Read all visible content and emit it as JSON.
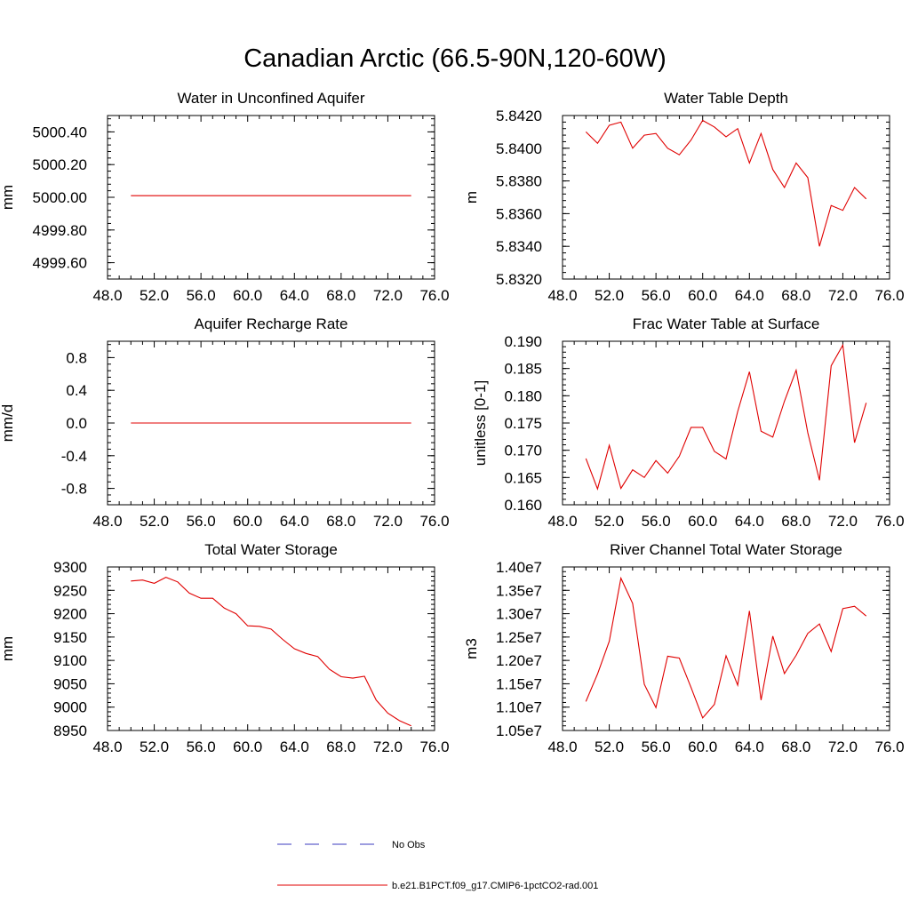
{
  "title": "Canadian Arctic (66.5-90N,120-60W)",
  "legend": {
    "items": [
      {
        "label": "No Obs",
        "color": "#3b3bbf",
        "dash": true
      },
      {
        "label": "b.e21.B1PCT.f09_g17.CMIP6-1pctCO2-rad.001",
        "color": "#e00000",
        "dash": false
      }
    ]
  },
  "chart_data": [
    {
      "type": "line",
      "title": "Water in Unconfined Aquifer",
      "xlabel": "",
      "ylabel": "mm",
      "xlim": [
        48,
        76
      ],
      "ylim": [
        4999.5,
        5000.5
      ],
      "xticks": [
        "48.0",
        "52.0",
        "56.0",
        "60.0",
        "64.0",
        "68.0",
        "72.0",
        "76.0"
      ],
      "yticks": [
        {
          "v": 4999.6,
          "label": "4999.60"
        },
        {
          "v": 4999.8,
          "label": "4999.80"
        },
        {
          "v": 5000.0,
          "label": "5000.00"
        },
        {
          "v": 5000.2,
          "label": "5000.20"
        },
        {
          "v": 5000.4,
          "label": "5000.40"
        }
      ],
      "color": "#e00000",
      "x": [
        50,
        51,
        52,
        53,
        54,
        55,
        56,
        57,
        58,
        59,
        60,
        61,
        62,
        63,
        64,
        65,
        66,
        67,
        68,
        69,
        70,
        71,
        72,
        73,
        74
      ],
      "values": [
        5000.01,
        5000.01,
        5000.01,
        5000.01,
        5000.01,
        5000.01,
        5000.01,
        5000.01,
        5000.01,
        5000.01,
        5000.01,
        5000.01,
        5000.01,
        5000.01,
        5000.01,
        5000.01,
        5000.01,
        5000.01,
        5000.01,
        5000.01,
        5000.01,
        5000.01,
        5000.01,
        5000.01,
        5000.01
      ]
    },
    {
      "type": "line",
      "title": "Water Table Depth",
      "xlabel": "",
      "ylabel": "m",
      "xlim": [
        48,
        76
      ],
      "ylim": [
        5.832,
        5.842
      ],
      "xticks": [
        "48.0",
        "52.0",
        "56.0",
        "60.0",
        "64.0",
        "68.0",
        "72.0",
        "76.0"
      ],
      "yticks": [
        {
          "v": 5.832,
          "label": "5.8320"
        },
        {
          "v": 5.834,
          "label": "5.8340"
        },
        {
          "v": 5.836,
          "label": "5.8360"
        },
        {
          "v": 5.838,
          "label": "5.8380"
        },
        {
          "v": 5.84,
          "label": "5.8400"
        },
        {
          "v": 5.842,
          "label": "5.8420"
        }
      ],
      "color": "#e00000",
      "x": [
        50,
        51,
        52,
        53,
        54,
        55,
        56,
        57,
        58,
        59,
        60,
        61,
        62,
        63,
        64,
        65,
        66,
        67,
        68,
        69,
        70,
        71,
        72,
        73,
        74
      ],
      "values": [
        5.841,
        5.8403,
        5.8414,
        5.8416,
        5.84,
        5.8408,
        5.8409,
        5.84,
        5.8396,
        5.8405,
        5.8417,
        5.8413,
        5.8407,
        5.8412,
        5.8391,
        5.8409,
        5.8387,
        5.8376,
        5.8391,
        5.8382,
        5.834,
        5.8365,
        5.8362,
        5.8376,
        5.8369
      ]
    },
    {
      "type": "line",
      "title": "Aquifer Recharge Rate",
      "xlabel": "",
      "ylabel": "mm/d",
      "xlim": [
        48,
        76
      ],
      "ylim": [
        -1.0,
        1.0
      ],
      "xticks": [
        "48.0",
        "52.0",
        "56.0",
        "60.0",
        "64.0",
        "68.0",
        "72.0",
        "76.0"
      ],
      "yticks": [
        {
          "v": -0.8,
          "label": "-0.8"
        },
        {
          "v": -0.4,
          "label": "-0.4"
        },
        {
          "v": 0.0,
          "label": "0.0"
        },
        {
          "v": 0.4,
          "label": "0.4"
        },
        {
          "v": 0.8,
          "label": "0.8"
        }
      ],
      "color": "#e00000",
      "x": [
        50,
        51,
        52,
        53,
        54,
        55,
        56,
        57,
        58,
        59,
        60,
        61,
        62,
        63,
        64,
        65,
        66,
        67,
        68,
        69,
        70,
        71,
        72,
        73,
        74
      ],
      "values": [
        0,
        0,
        0,
        0,
        0,
        0,
        0,
        0,
        0,
        0,
        0,
        0,
        0,
        0,
        0,
        0,
        0,
        0,
        0,
        0,
        0,
        0,
        0,
        0,
        0
      ]
    },
    {
      "type": "line",
      "title": "Frac Water Table at Surface",
      "xlabel": "",
      "ylabel": "unitless [0-1]",
      "xlim": [
        48,
        76
      ],
      "ylim": [
        0.16,
        0.19
      ],
      "xticks": [
        "48.0",
        "52.0",
        "56.0",
        "60.0",
        "64.0",
        "68.0",
        "72.0",
        "76.0"
      ],
      "yticks": [
        {
          "v": 0.16,
          "label": "0.160"
        },
        {
          "v": 0.165,
          "label": "0.165"
        },
        {
          "v": 0.17,
          "label": "0.170"
        },
        {
          "v": 0.175,
          "label": "0.175"
        },
        {
          "v": 0.18,
          "label": "0.180"
        },
        {
          "v": 0.185,
          "label": "0.185"
        },
        {
          "v": 0.19,
          "label": "0.190"
        }
      ],
      "color": "#e00000",
      "x": [
        50,
        51,
        52,
        53,
        54,
        55,
        56,
        57,
        58,
        59,
        60,
        61,
        62,
        63,
        64,
        65,
        66,
        67,
        68,
        69,
        70,
        71,
        72,
        73,
        74
      ],
      "values": [
        0.1685,
        0.1629,
        0.1709,
        0.163,
        0.1664,
        0.165,
        0.1681,
        0.1658,
        0.1689,
        0.1742,
        0.1742,
        0.1698,
        0.1684,
        0.1771,
        0.1844,
        0.1735,
        0.1724,
        0.179,
        0.1847,
        0.1732,
        0.1645,
        0.1855,
        0.1893,
        0.1714,
        0.1787
      ]
    },
    {
      "type": "line",
      "title": "Total Water Storage",
      "xlabel": "",
      "ylabel": "mm",
      "xlim": [
        48,
        76
      ],
      "ylim": [
        8950,
        9300
      ],
      "xticks": [
        "48.0",
        "52.0",
        "56.0",
        "60.0",
        "64.0",
        "68.0",
        "72.0",
        "76.0"
      ],
      "yticks": [
        {
          "v": 8950,
          "label": "8950"
        },
        {
          "v": 9000,
          "label": "9000"
        },
        {
          "v": 9050,
          "label": "9050"
        },
        {
          "v": 9100,
          "label": "9100"
        },
        {
          "v": 9150,
          "label": "9150"
        },
        {
          "v": 9200,
          "label": "9200"
        },
        {
          "v": 9250,
          "label": "9250"
        },
        {
          "v": 9300,
          "label": "9300"
        }
      ],
      "color": "#e00000",
      "x": [
        50,
        51,
        52,
        53,
        54,
        55,
        56,
        57,
        58,
        59,
        60,
        61,
        62,
        63,
        64,
        65,
        66,
        67,
        68,
        69,
        70,
        71,
        72,
        73,
        74
      ],
      "values": [
        9270,
        9272,
        9265,
        9278,
        9268,
        9244,
        9233,
        9233,
        9212,
        9200,
        9174,
        9173,
        9167,
        9145,
        9125,
        9115,
        9108,
        9081,
        9065,
        9062,
        9066,
        9015,
        8987,
        8971,
        8960
      ]
    },
    {
      "type": "line",
      "title": "River Channel Total Water Storage",
      "xlabel": "",
      "ylabel": "m3",
      "xlim": [
        48,
        76
      ],
      "ylim": [
        10500000,
        14000000
      ],
      "xticks": [
        "48.0",
        "52.0",
        "56.0",
        "60.0",
        "64.0",
        "68.0",
        "72.0",
        "76.0"
      ],
      "yticks": [
        {
          "v": 10500000,
          "label": "1.05e7"
        },
        {
          "v": 11000000,
          "label": "1.10e7"
        },
        {
          "v": 11500000,
          "label": "1.15e7"
        },
        {
          "v": 12000000,
          "label": "1.20e7"
        },
        {
          "v": 12500000,
          "label": "1.25e7"
        },
        {
          "v": 13000000,
          "label": "1.30e7"
        },
        {
          "v": 13500000,
          "label": "1.35e7"
        },
        {
          "v": 14000000,
          "label": "1.40e7"
        }
      ],
      "color": "#e00000",
      "x": [
        50,
        51,
        52,
        53,
        54,
        55,
        56,
        57,
        58,
        59,
        60,
        61,
        62,
        63,
        64,
        65,
        66,
        67,
        68,
        69,
        70,
        71,
        72,
        73,
        74
      ],
      "values": [
        11120000,
        11710000,
        12410000,
        13760000,
        13220000,
        11490000,
        10990000,
        12090000,
        12050000,
        11420000,
        10770000,
        11060000,
        12100000,
        11470000,
        13060000,
        11150000,
        12520000,
        11720000,
        12110000,
        12580000,
        12780000,
        12190000,
        13110000,
        13160000,
        12950000
      ]
    }
  ]
}
